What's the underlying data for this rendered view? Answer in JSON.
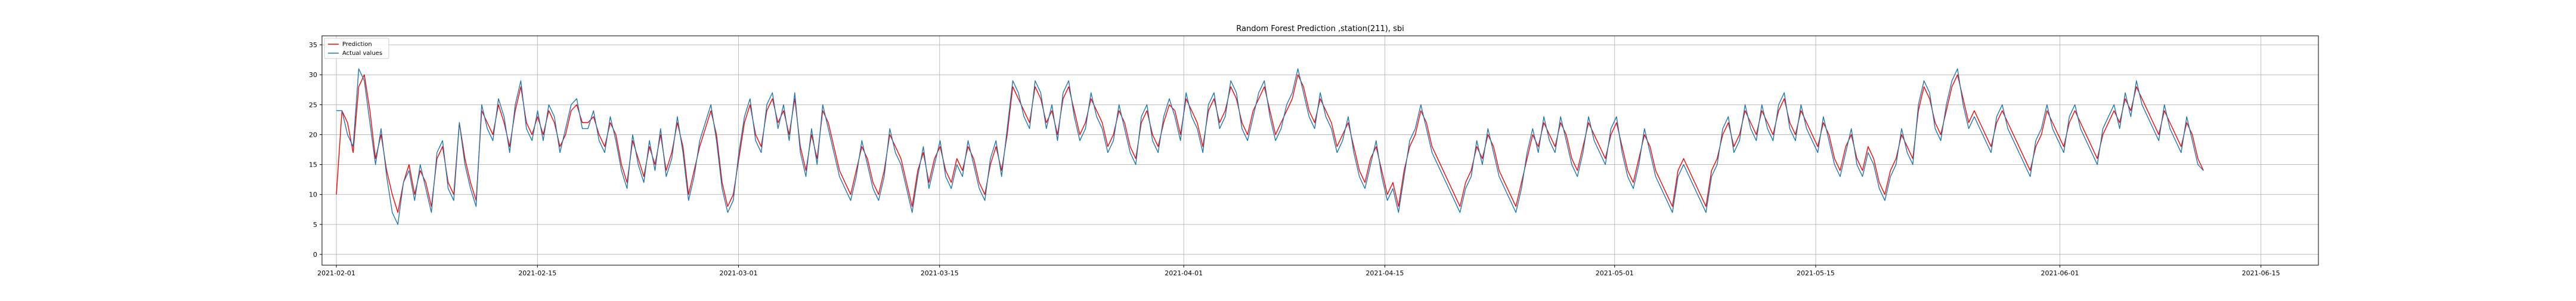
{
  "chart_data": {
    "type": "line",
    "title": "Random Forest Prediction ,station(211), sbi",
    "xlabel": "",
    "ylabel": "",
    "x_start": "2021-01-31",
    "x_end": "2021-06-19",
    "data_start": "2021-02-01",
    "data_end": "2021-06-11",
    "ylim": [
      -1.8,
      36.5
    ],
    "yticks": [
      0,
      5,
      10,
      15,
      20,
      25,
      30,
      35
    ],
    "xticks": [
      "2021-02-01",
      "2021-02-15",
      "2021-03-01",
      "2021-03-15",
      "2021-04-01",
      "2021-04-15",
      "2021-05-01",
      "2021-05-15",
      "2021-06-01",
      "2021-06-15"
    ],
    "grid": true,
    "legend_position": "top-left",
    "series": [
      {
        "name": "Prediction",
        "color": "#ff0000",
        "values": [
          10,
          24,
          22,
          17,
          28,
          30,
          24,
          16,
          20,
          14,
          10,
          7,
          12,
          15,
          10,
          14,
          12,
          8,
          16,
          18,
          12,
          10,
          22,
          16,
          12,
          9,
          24,
          22,
          20,
          25,
          22,
          18,
          24,
          28,
          22,
          20,
          23,
          20,
          24,
          22,
          18,
          20,
          24,
          25,
          22,
          22,
          23,
          20,
          18,
          22,
          20,
          15,
          12,
          19,
          16,
          13,
          18,
          15,
          20,
          14,
          17,
          22,
          18,
          10,
          14,
          18,
          21,
          24,
          20,
          12,
          8,
          10,
          16,
          22,
          25,
          20,
          18,
          24,
          26,
          22,
          24,
          20,
          26,
          18,
          14,
          20,
          16,
          24,
          22,
          18,
          14,
          12,
          10,
          14,
          18,
          16,
          12,
          10,
          14,
          20,
          18,
          16,
          12,
          8,
          14,
          17,
          12,
          16,
          18,
          14,
          12,
          16,
          14,
          18,
          16,
          12,
          10,
          15,
          18,
          14,
          20,
          28,
          26,
          24,
          22,
          28,
          26,
          22,
          24,
          20,
          26,
          28,
          24,
          20,
          22,
          26,
          24,
          22,
          18,
          20,
          24,
          22,
          18,
          16,
          22,
          24,
          20,
          18,
          22,
          25,
          24,
          20,
          26,
          24,
          22,
          18,
          24,
          26,
          22,
          24,
          28,
          26,
          22,
          20,
          24,
          26,
          28,
          24,
          20,
          22,
          24,
          26,
          30,
          28,
          24,
          22,
          26,
          24,
          22,
          18,
          20,
          22,
          18,
          14,
          12,
          16,
          18,
          14,
          10,
          12,
          8,
          14,
          18,
          20,
          24,
          22,
          18,
          16,
          14,
          12,
          10,
          8,
          12,
          14,
          18,
          16,
          20,
          18,
          14,
          12,
          10,
          8,
          12,
          16,
          20,
          18,
          22,
          20,
          18,
          22,
          20,
          16,
          14,
          18,
          22,
          20,
          18,
          16,
          20,
          22,
          18,
          14,
          12,
          16,
          20,
          18,
          14,
          12,
          10,
          8,
          14,
          16,
          14,
          12,
          10,
          8,
          14,
          16,
          20,
          22,
          18,
          20,
          24,
          22,
          20,
          24,
          22,
          20,
          24,
          26,
          22,
          20,
          24,
          22,
          20,
          18,
          22,
          20,
          16,
          14,
          18,
          20,
          16,
          14,
          18,
          16,
          12,
          10,
          14,
          16,
          20,
          18,
          16,
          24,
          28,
          26,
          22,
          20,
          24,
          28,
          30,
          26,
          22,
          24,
          22,
          20,
          18,
          22,
          24,
          22,
          20,
          18,
          16,
          14,
          18,
          20,
          24,
          22,
          20,
          18,
          22,
          24,
          22,
          20,
          18,
          16,
          20,
          22,
          24,
          22,
          26,
          24,
          28,
          26,
          24,
          22,
          20,
          24,
          22,
          20,
          18,
          22,
          20,
          16,
          14
        ]
      },
      {
        "name": "Actual values",
        "color": "#1f77b4",
        "values": [
          24,
          24,
          20,
          18,
          31,
          29,
          22,
          15,
          21,
          13,
          7,
          5,
          12,
          14,
          9,
          15,
          11,
          7,
          17,
          19,
          11,
          9,
          22,
          15,
          11,
          8,
          25,
          21,
          19,
          26,
          23,
          17,
          25,
          29,
          21,
          19,
          24,
          19,
          25,
          23,
          17,
          21,
          25,
          26,
          21,
          21,
          24,
          19,
          17,
          23,
          19,
          14,
          11,
          20,
          15,
          12,
          19,
          14,
          21,
          13,
          16,
          23,
          17,
          9,
          13,
          19,
          22,
          25,
          19,
          11,
          7,
          9,
          17,
          23,
          26,
          19,
          17,
          25,
          27,
          21,
          25,
          19,
          27,
          17,
          13,
          21,
          15,
          25,
          21,
          17,
          13,
          11,
          9,
          13,
          19,
          15,
          11,
          9,
          13,
          21,
          17,
          15,
          11,
          7,
          13,
          18,
          11,
          15,
          19,
          13,
          11,
          15,
          13,
          19,
          15,
          11,
          9,
          16,
          19,
          13,
          21,
          29,
          27,
          23,
          21,
          29,
          27,
          21,
          25,
          19,
          27,
          29,
          23,
          19,
          21,
          27,
          23,
          21,
          17,
          19,
          25,
          21,
          17,
          15,
          23,
          25,
          19,
          17,
          23,
          26,
          23,
          19,
          27,
          23,
          21,
          17,
          25,
          27,
          21,
          23,
          29,
          27,
          21,
          19,
          23,
          27,
          29,
          23,
          19,
          21,
          25,
          27,
          31,
          27,
          23,
          21,
          27,
          23,
          21,
          17,
          19,
          23,
          17,
          13,
          11,
          15,
          19,
          13,
          9,
          11,
          7,
          13,
          19,
          21,
          25,
          21,
          17,
          15,
          13,
          11,
          9,
          7,
          11,
          13,
          19,
          15,
          21,
          17,
          13,
          11,
          9,
          7,
          11,
          17,
          21,
          17,
          23,
          19,
          17,
          23,
          19,
          15,
          13,
          17,
          23,
          19,
          17,
          15,
          21,
          23,
          17,
          13,
          11,
          15,
          21,
          17,
          13,
          11,
          9,
          7,
          13,
          15,
          13,
          11,
          9,
          7,
          13,
          15,
          21,
          23,
          17,
          19,
          25,
          21,
          19,
          25,
          21,
          19,
          25,
          27,
          21,
          19,
          25,
          21,
          19,
          17,
          23,
          19,
          15,
          13,
          17,
          21,
          15,
          13,
          17,
          15,
          11,
          9,
          13,
          15,
          21,
          17,
          15,
          25,
          29,
          27,
          21,
          19,
          25,
          29,
          31,
          25,
          21,
          23,
          21,
          19,
          17,
          23,
          25,
          21,
          19,
          17,
          15,
          13,
          19,
          21,
          25,
          21,
          19,
          17,
          23,
          25,
          21,
          19,
          17,
          15,
          21,
          23,
          25,
          21,
          27,
          23,
          29,
          25,
          23,
          21,
          19,
          25,
          21,
          19,
          17,
          23,
          19,
          15,
          14
        ]
      }
    ]
  }
}
